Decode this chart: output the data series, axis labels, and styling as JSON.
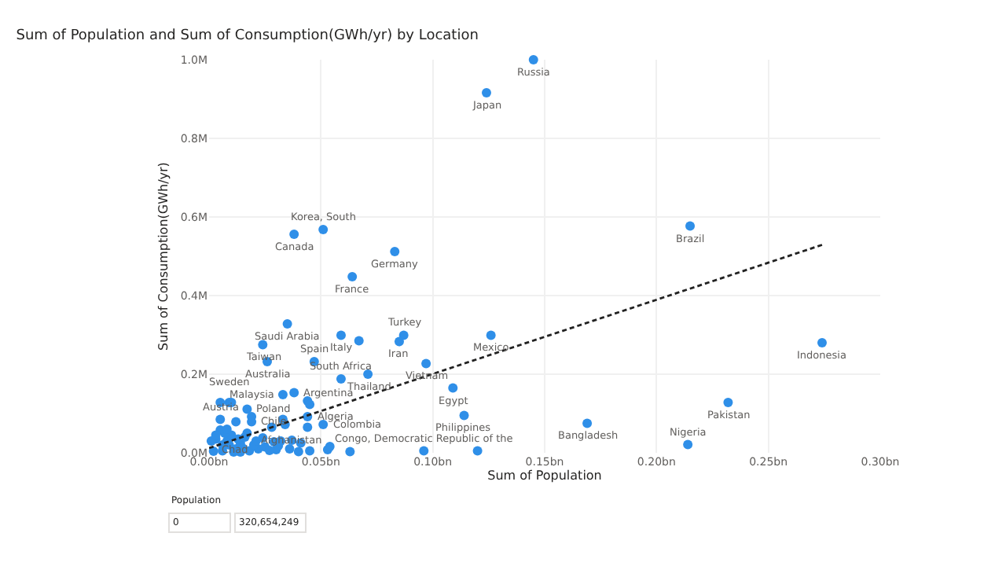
{
  "chart_data": {
    "type": "scatter",
    "title": "Sum of Population and Sum of Consumption(GWh/yr) by Location",
    "xlabel": "Sum of Population",
    "ylabel": "Sum of Consumption(GWh/yr)",
    "xlim": [
      0,
      0.3
    ],
    "ylim": [
      0,
      1.0
    ],
    "xticks": [
      {
        "value": 0,
        "label": "0.00bn"
      },
      {
        "value": 0.05,
        "label": "0.05bn"
      },
      {
        "value": 0.1,
        "label": "0.10bn"
      },
      {
        "value": 0.15,
        "label": "0.15bn"
      },
      {
        "value": 0.2,
        "label": "0.20bn"
      },
      {
        "value": 0.25,
        "label": "0.25bn"
      },
      {
        "value": 0.3,
        "label": "0.30bn"
      }
    ],
    "yticks": [
      {
        "value": 0,
        "label": "0.0M"
      },
      {
        "value": 0.2,
        "label": "0.2M"
      },
      {
        "value": 0.4,
        "label": "0.4M"
      },
      {
        "value": 0.6,
        "label": "0.6M"
      },
      {
        "value": 0.8,
        "label": "0.8M"
      },
      {
        "value": 1.0,
        "label": "1.0M"
      }
    ],
    "grid": true,
    "series": [
      {
        "marker": "circle",
        "color": "#2f8fe8",
        "x": [
          0.145,
          0.124,
          0.051,
          0.038,
          0.083,
          0.064,
          0.215,
          0.035,
          0.274,
          0.024,
          0.087,
          0.085,
          0.059,
          0.067,
          0.126,
          0.026,
          0.047,
          0.097,
          0.059,
          0.071,
          0.109,
          0.033,
          0.038,
          0.044,
          0.045,
          0.005,
          0.009,
          0.01,
          0.017,
          0.019,
          0.019,
          0.114,
          0.051,
          0.044,
          0.044,
          0.033,
          0.034,
          0.028,
          0.005,
          0.012,
          0.063,
          0.096,
          0.12,
          0.04,
          0.045,
          0.053,
          0.054,
          0.037,
          0.041,
          0.232,
          0.169,
          0.214,
          0.022,
          0.002,
          0.006,
          0.008,
          0.01,
          0.012,
          0.014,
          0.016,
          0.018,
          0.02,
          0.025,
          0.03,
          0.032,
          0.003,
          0.007,
          0.011,
          0.015,
          0.005,
          0.009,
          0.013,
          0.027,
          0.031,
          0.036,
          0.001,
          0.003,
          0.006,
          0.017,
          0.024,
          0.029,
          0.008,
          0.014,
          0.021
        ],
        "values": [
          1.0,
          0.916,
          0.568,
          0.556,
          0.512,
          0.448,
          0.577,
          0.328,
          0.28,
          0.275,
          0.299,
          0.283,
          0.299,
          0.285,
          0.299,
          0.232,
          0.232,
          0.227,
          0.188,
          0.2,
          0.165,
          0.148,
          0.153,
          0.132,
          0.123,
          0.128,
          0.128,
          0.128,
          0.111,
          0.092,
          0.079,
          0.095,
          0.072,
          0.092,
          0.065,
          0.085,
          0.072,
          0.065,
          0.085,
          0.079,
          0.003,
          0.005,
          0.005,
          0.003,
          0.005,
          0.008,
          0.016,
          0.032,
          0.025,
          0.128,
          0.075,
          0.021,
          0.01,
          0.004,
          0.02,
          0.03,
          0.045,
          0.01,
          0.025,
          0.04,
          0.005,
          0.02,
          0.015,
          0.008,
          0.03,
          0.035,
          0.05,
          0.002,
          0.012,
          0.058,
          0.02,
          0.035,
          0.006,
          0.018,
          0.01,
          0.03,
          0.045,
          0.005,
          0.05,
          0.038,
          0.028,
          0.06,
          0.002,
          0.03
        ]
      },
      {
        "type": "line",
        "line_style": "dashed",
        "color": "#222222",
        "x": [
          0.0,
          0.274
        ],
        "values": [
          0.012,
          0.529
        ]
      }
    ],
    "annotations": [
      {
        "text": "Russia",
        "x": 0.145,
        "y": 1.0
      },
      {
        "text": "Japan",
        "x": 0.124,
        "y": 0.916
      },
      {
        "text": "Korea, South",
        "x": 0.051,
        "y": 0.568
      },
      {
        "text": "Canada",
        "x": 0.038,
        "y": 0.556
      },
      {
        "text": "Germany",
        "x": 0.083,
        "y": 0.512
      },
      {
        "text": "France",
        "x": 0.064,
        "y": 0.448
      },
      {
        "text": "Brazil",
        "x": 0.215,
        "y": 0.577
      },
      {
        "text": "Saudi Arabia",
        "x": 0.035,
        "y": 0.328
      },
      {
        "text": "Indonesia",
        "x": 0.274,
        "y": 0.28
      },
      {
        "text": "Taiwan",
        "x": 0.024,
        "y": 0.275
      },
      {
        "text": "Turkey",
        "x": 0.087,
        "y": 0.299
      },
      {
        "text": "Iran",
        "x": 0.085,
        "y": 0.283
      },
      {
        "text": "Italy",
        "x": 0.059,
        "y": 0.299
      },
      {
        "text": "Mexico",
        "x": 0.126,
        "y": 0.299
      },
      {
        "text": "Australia",
        "x": 0.026,
        "y": 0.232
      },
      {
        "text": "Spain",
        "x": 0.047,
        "y": 0.232
      },
      {
        "text": "Vietnam",
        "x": 0.097,
        "y": 0.227
      },
      {
        "text": "South Africa",
        "x": 0.059,
        "y": 0.188
      },
      {
        "text": "Thailand",
        "x": 0.071,
        "y": 0.2
      },
      {
        "text": "Egypt",
        "x": 0.109,
        "y": 0.165
      },
      {
        "text": "Malaysia",
        "x": 0.033,
        "y": 0.148
      },
      {
        "text": "Argentina",
        "x": 0.038,
        "y": 0.153
      },
      {
        "text": "Sweden",
        "x": 0.009,
        "y": 0.128
      },
      {
        "text": "Poland",
        "x": 0.017,
        "y": 0.111
      },
      {
        "text": "Chile",
        "x": 0.019,
        "y": 0.079
      },
      {
        "text": "Philippines",
        "x": 0.114,
        "y": 0.095
      },
      {
        "text": "Colombia",
        "x": 0.051,
        "y": 0.072
      },
      {
        "text": "Algeria",
        "x": 0.044,
        "y": 0.092
      },
      {
        "text": "Austria",
        "x": 0.005,
        "y": 0.085
      },
      {
        "text": "Congo, Democratic Republic of the",
        "x": 0.096,
        "y": 0.005
      },
      {
        "text": "Afghanistan",
        "x": 0.037,
        "y": 0.032
      },
      {
        "text": "Chad",
        "x": 0.022,
        "y": 0.01
      },
      {
        "text": "Pakistan",
        "x": 0.232,
        "y": 0.128
      },
      {
        "text": "Bangladesh",
        "x": 0.169,
        "y": 0.075
      },
      {
        "text": "Nigeria",
        "x": 0.214,
        "y": 0.021
      },
      "Population",
      "0",
      "320,654,249"
    ]
  }
}
